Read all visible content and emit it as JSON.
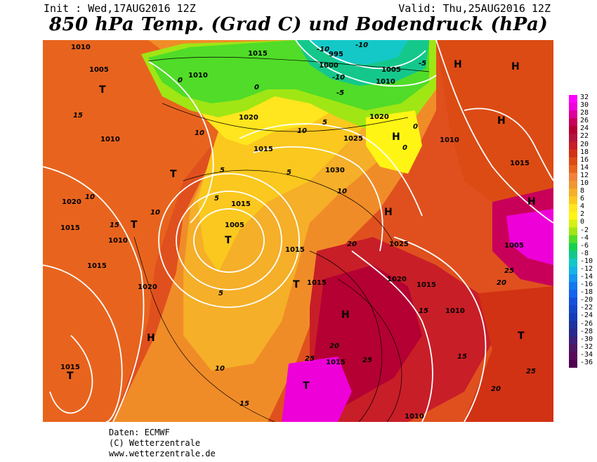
{
  "header": {
    "init": "Init : Wed,17AUG2016 12Z",
    "valid": "Valid: Thu,25AUG2016 12Z",
    "title": "850 hPa Temp. (Grad C) und Bodendruck (hPa)"
  },
  "credits": {
    "line1": "Daten: ECMWF",
    "line2": "(C) Wetterzentrale",
    "line3": "www.wetterzentrale.de"
  },
  "colorscale": {
    "labels": [
      "32",
      "30",
      "28",
      "26",
      "24",
      "22",
      "20",
      "18",
      "16",
      "14",
      "12",
      "10",
      "8",
      "6",
      "4",
      "2",
      "0",
      "-2",
      "-4",
      "-6",
      "-8",
      "-10",
      "-12",
      "-14",
      "-16",
      "-18",
      "-20",
      "-22",
      "-24",
      "-26",
      "-28",
      "-30",
      "-32",
      "-34",
      "-36"
    ],
    "colors": [
      "#ff00ff",
      "#ee00d8",
      "#dd0099",
      "#c8005a",
      "#b40032",
      "#b4143c",
      "#c81e28",
      "#d23214",
      "#dc4b14",
      "#e6641e",
      "#f0823c",
      "#f09632",
      "#f5af28",
      "#fac81e",
      "#ffe61e",
      "#fff514",
      "#d7f014",
      "#a0e614",
      "#50dc28",
      "#14d250",
      "#14c88c",
      "#14c8c8",
      "#14b4e6",
      "#1496f0",
      "#1478f0",
      "#1464f0",
      "#1450dc",
      "#1446c8",
      "#143cb4",
      "#1e32a0",
      "#28288c",
      "#3c1e78",
      "#501464",
      "#5a0a5a",
      "#500050"
    ]
  },
  "map_labels": {
    "high": "H",
    "low": "T",
    "pressure": [
      "1010",
      "1005",
      "1015",
      "995",
      "1000",
      "1005",
      "1010",
      "1020",
      "1025",
      "1030",
      "1020",
      "1015",
      "1010",
      "1005",
      "1015",
      "1020",
      "1015",
      "1010",
      "1015",
      "1015",
      "1020",
      "1015",
      "1010",
      "1025",
      "1020",
      "1015",
      "1010",
      "1015",
      "1005",
      "1010",
      "1015",
      "1010",
      "1015"
    ],
    "temps": [
      "-10",
      "-10",
      "-10",
      "-5",
      "-5",
      "0",
      "0",
      "0",
      "0",
      "5",
      "5",
      "5",
      "5",
      "5",
      "10",
      "10",
      "10",
      "10",
      "10",
      "10",
      "15",
      "15",
      "15",
      "15",
      "15",
      "20",
      "20",
      "20",
      "20",
      "25",
      "25",
      "25",
      "25"
    ]
  }
}
